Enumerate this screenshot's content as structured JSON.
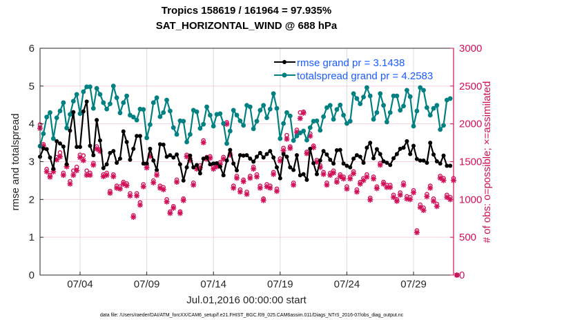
{
  "chart_data": {
    "type": "line",
    "title_lines": [
      "Tropics 158619 / 161964 = 97.935%",
      "SAT_HORIZONTAL_WIND @ 688 hPa"
    ],
    "xlabel": "Jul.01,2016 00:00:00 start",
    "ylabel_left": "rmse and totalspread",
    "ylabel_right": "# of obs: o=possible; ×=assimilated",
    "footer": "data file: /Users/raeder/DAI/ATM_forcXX/CAM6_setup/f.e21.FHIST_BGC.f09_025.CAM6assim.011/Diags_NTrS_2016-07/obs_diag_output.nc",
    "x_units": "days since Jul.01,2016 00:00:00",
    "x_step_days": 0.25,
    "xlim": [
      0,
      31
    ],
    "x_ticks": [
      {
        "value": 3,
        "label": "07/04"
      },
      {
        "value": 8,
        "label": "07/09"
      },
      {
        "value": 13,
        "label": "07/14"
      },
      {
        "value": 18,
        "label": "07/19"
      },
      {
        "value": 23,
        "label": "07/24"
      },
      {
        "value": 28,
        "label": "07/29"
      }
    ],
    "ylim_left": [
      0,
      6
    ],
    "y_ticks_left": [
      0,
      1,
      2,
      3,
      4,
      5,
      6
    ],
    "ylim_right": [
      0,
      3000
    ],
    "y_ticks_right": [
      0,
      500,
      1000,
      1500,
      2000,
      2500,
      3000
    ],
    "grid": true,
    "legend_position": "top-right",
    "colors": {
      "rmse": "#000000",
      "totalspread": "#008080",
      "obs": "#d1105a",
      "legend_text": "#1a5cff"
    },
    "series": [
      {
        "name": "rmse",
        "legend": "rmse grand pr = 3.1438",
        "axis": "left",
        "values": [
          3.13,
          3.35,
          3.33,
          3.11,
          2.81,
          3.54,
          3.48,
          3.4,
          2.93,
          3.82,
          4.31,
          3.39,
          3.39,
          4.33,
          4.59,
          3.42,
          3.17,
          4.1,
          3.56,
          2.83,
          2.93,
          3.23,
          3.28,
          2.97,
          3.08,
          3.8,
          3.52,
          3.05,
          3.34,
          3.68,
          3.68,
          2.95,
          2.95,
          3.34,
          3.03,
          2.78,
          3.46,
          3.45,
          3.13,
          3.17,
          3.11,
          3.19,
          2.93,
          2.5,
          2.85,
          3.16,
          2.85,
          2.91,
          2.69,
          3.08,
          3.11,
          2.93,
          2.95,
          2.96,
          2.87,
          2.64,
          3.03,
          3.31,
          2.95,
          2.77,
          3.17,
          3.16,
          3.17,
          3.08,
          3.0,
          3.13,
          3.23,
          3.11,
          3.2,
          3.28,
          3.11,
          2.85,
          2.56,
          3.2,
          3.13,
          2.85,
          2.78,
          3.17,
          2.64,
          2.67,
          2.52,
          3.34,
          2.96,
          2.67,
          3.03,
          3.28,
          3.19,
          3.05,
          2.95,
          3.3,
          3.31,
          2.95,
          2.89,
          2.85,
          3.08,
          3.17,
          3.13,
          2.97,
          3.37,
          3.5,
          3.09,
          3.33,
          3.2,
          3.01,
          2.97,
          2.91,
          3.09,
          3.2,
          3.34,
          3.37,
          3.54,
          3.2,
          3.42,
          3.07,
          3.03,
          3.03,
          2.97,
          3.5,
          3.19,
          3.01,
          2.95,
          3.16,
          2.89,
          2.89
        ]
      },
      {
        "name": "totalspread",
        "legend": "totalspread grand pr = 4.2583",
        "axis": "left",
        "values": [
          3.41,
          3.74,
          4.18,
          4.3,
          3.61,
          4.16,
          4.34,
          4.56,
          3.89,
          4.25,
          4.6,
          4.78,
          4.27,
          4.85,
          4.98,
          4.98,
          4.41,
          4.94,
          4.78,
          4.56,
          4.39,
          4.53,
          5.0,
          4.69,
          4.29,
          4.56,
          4.74,
          4.23,
          4.18,
          4.1,
          4.39,
          4.38,
          3.63,
          3.98,
          4.56,
          4.69,
          4.19,
          4.3,
          4.63,
          4.34,
          3.9,
          3.72,
          4.08,
          4.07,
          3.52,
          3.72,
          4.36,
          4.32,
          3.88,
          3.99,
          4.45,
          4.23,
          3.94,
          4.25,
          4.27,
          4.01,
          3.48,
          3.81,
          4.36,
          4.23,
          4.08,
          3.96,
          4.49,
          4.45,
          3.87,
          4.07,
          4.36,
          4.49,
          4.16,
          4.39,
          4.8,
          4.41,
          3.61,
          4.01,
          4.3,
          4.21,
          3.56,
          3.68,
          3.76,
          3.81,
          3.57,
          3.9,
          4.07,
          4.08,
          3.83,
          4.19,
          4.43,
          4.49,
          4.12,
          4.38,
          4.5,
          4.23,
          4.01,
          4.07,
          4.8,
          4.67,
          4.53,
          4.71,
          4.96,
          4.74,
          4.12,
          4.3,
          4.8,
          4.49,
          4.05,
          4.3,
          4.74,
          4.74,
          4.36,
          4.47,
          4.89,
          4.72,
          3.94,
          4.34,
          4.96,
          4.89,
          4.43,
          4.23,
          4.41,
          4.49,
          3.85,
          3.96,
          4.63,
          4.67
        ]
      },
      {
        "name": "obs assimilated",
        "axis": "right",
        "values": [
          1942,
          1708,
          1368,
          1298,
          1368,
          1526,
          1566,
          1322,
          1434,
          1206,
          1322,
          1383,
          1556,
          1516,
          1322,
          1322,
          1456,
          1669,
          1638,
          1304,
          1322,
          1085,
          1304,
          1152,
          1140,
          1206,
          1183,
          1049,
          766,
          1049,
          927,
          1170,
          1420,
          1571,
          1222,
          1322,
          1152,
          1131,
          969,
          818,
          887,
          1231,
          818,
          988,
          1566,
          1516,
          1192,
          1404,
          1420,
          1753,
          1535,
          1547,
          1404,
          1434,
          1465,
          1535,
          1997,
          1587,
          1152,
          1283,
          1101,
          1237,
          1070,
          1283,
          1404,
          1300,
          1152,
          988,
          1170,
          1152,
          1334,
          1110,
          1511,
          1648,
          1799,
          1678,
          1192,
          1890,
          2073,
          2143,
          1608,
          1839,
          1687,
          1495,
          1425,
          1334,
          1192,
          1322,
          1352,
          1231,
          1304,
          1274,
          1140,
          1274,
          1343,
          1101,
          1206,
          1252,
          1298,
          994,
          1274,
          1146,
          1456,
          1206,
          1161,
          1161,
          1030,
          978,
          1060,
          1192,
          1009,
          1000,
          1091,
          563,
          896,
          857,
          1039,
          1152,
          978,
          909,
          1283,
          1252,
          1030,
          1000,
          1252,
          0
        ]
      },
      {
        "name": "obs possible",
        "axis": "right",
        "values": [
          1990,
          1730,
          1400,
          1320,
          1400,
          1560,
          1620,
          1350,
          1460,
          1240,
          1380,
          1430,
          1590,
          1580,
          1380,
          1350,
          1480,
          1700,
          1660,
          1330,
          1350,
          1110,
          1330,
          1180,
          1170,
          1230,
          1210,
          1080,
          790,
          1080,
          960,
          1200,
          1450,
          1600,
          1250,
          1350,
          1180,
          1160,
          1000,
          840,
          910,
          1260,
          840,
          1010,
          1590,
          1540,
          1220,
          1430,
          1450,
          1780,
          1560,
          1570,
          1430,
          1460,
          1490,
          1560,
          2020,
          1610,
          1180,
          1310,
          1130,
          1260,
          1100,
          1310,
          1430,
          1330,
          1180,
          1010,
          1200,
          1180,
          1360,
          1140,
          1540,
          1680,
          1850,
          1700,
          1220,
          1920,
          2150,
          2160,
          1630,
          1870,
          1710,
          1520,
          1450,
          1360,
          1220,
          1350,
          1380,
          1260,
          1330,
          1300,
          1170,
          1300,
          1370,
          1130,
          1230,
          1280,
          1330,
          1020,
          1300,
          1170,
          1480,
          1230,
          1190,
          1190,
          1060,
          1000,
          1090,
          1220,
          1040,
          1030,
          1120,
          590,
          930,
          890,
          1070,
          1180,
          1010,
          940,
          1310,
          1280,
          1060,
          1030,
          1280,
          0
        ]
      }
    ]
  }
}
